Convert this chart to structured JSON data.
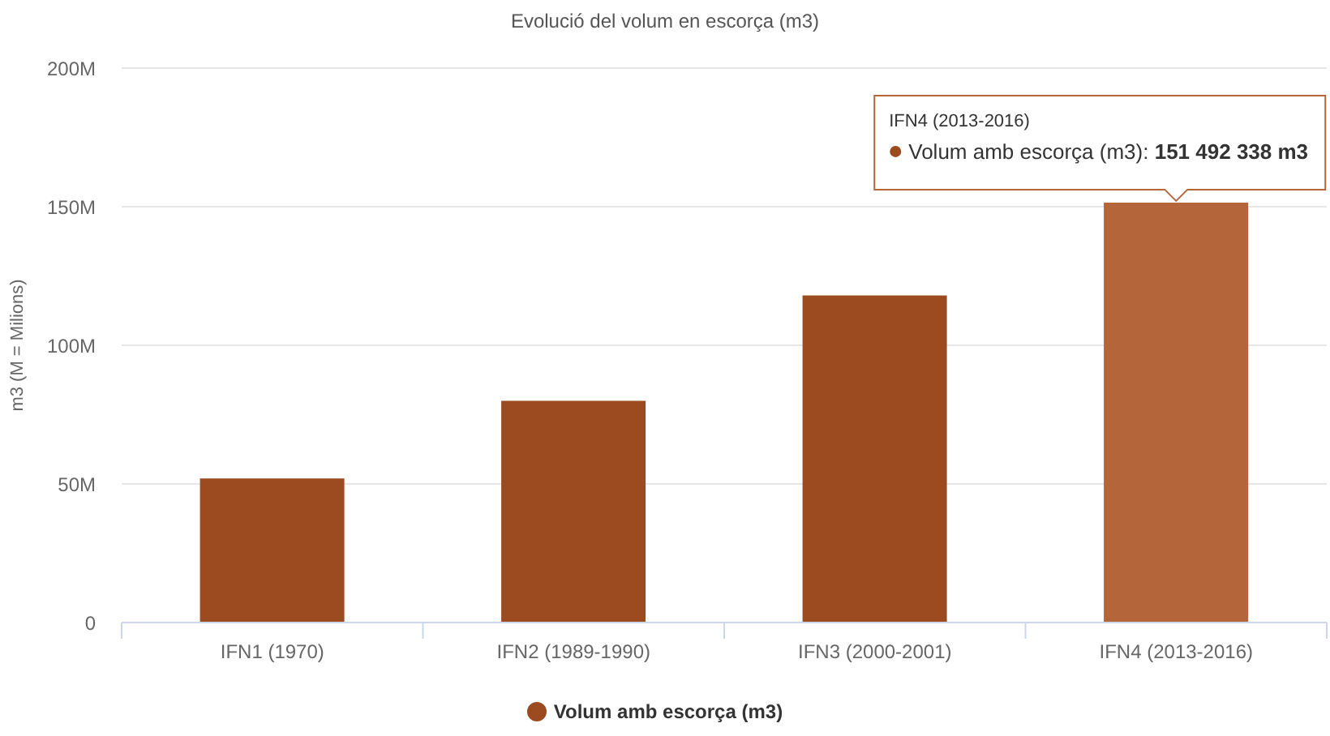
{
  "chart_data": {
    "type": "bar",
    "title": "Evolució del volum en escorça (m3)",
    "ylabel": "m3 (M = Milions)",
    "categories": [
      "IFN1 (1970)",
      "IFN2 (1989-1990)",
      "IFN3 (2000-2001)",
      "IFN4 (2013-2016)"
    ],
    "series": [
      {
        "name": "Volum amb escorça (m3)",
        "color": "#9c4a1f",
        "colors": [
          "#9c4a1f",
          "#9c4a1f",
          "#9c4a1f",
          "#b5653a"
        ],
        "values": [
          52000000,
          80000000,
          118000000,
          151492338
        ]
      }
    ],
    "ylim": [
      0,
      200000000
    ],
    "yticks": [
      0,
      {
        "value": 50000000,
        "label": "50M"
      },
      {
        "value": 100000000,
        "label": "100M"
      },
      {
        "value": 150000000,
        "label": "150M"
      },
      {
        "value": 200000000,
        "label": "200M"
      }
    ],
    "grid": "y",
    "legend": "bottom",
    "annotations": [
      "IFN4 (2013-2016)",
      {
        "text": "Volum amb escorça (m3): 151 492 338 m3",
        "x": "IFN4 (2013-2016)",
        "y": 151492338
      }
    ]
  }
}
